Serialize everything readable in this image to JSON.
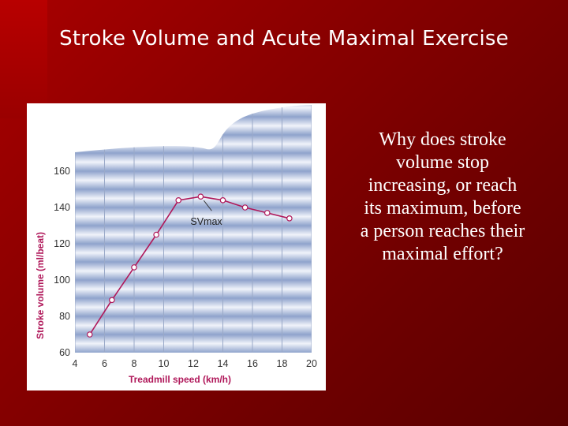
{
  "slide": {
    "title": "Stroke Volume and Acute Maximal Exercise",
    "question": "Why does stroke volume stop increasing, or reach its maximum, before a person reaches their maximal effort?"
  },
  "colors": {
    "background": "#8a0000",
    "chart_panel": "#ffffff",
    "band_dark": "#8fa3cc",
    "band_light": "#f0f3fa",
    "series": "#b0185a",
    "axis_label": "#b0185a"
  },
  "chart_data": {
    "type": "line",
    "title": "",
    "xlabel": "Treadmill speed (km/h)",
    "ylabel": "Stroke volume (ml/beat)",
    "xlim": [
      4,
      20
    ],
    "ylim": [
      60,
      170
    ],
    "x_ticks": [
      4,
      6,
      8,
      10,
      12,
      14,
      16,
      18,
      20
    ],
    "y_ticks": [
      60,
      80,
      100,
      120,
      140,
      160
    ],
    "grid": true,
    "series": [
      {
        "x": [
          5,
          6.5,
          8,
          9.5,
          11,
          12.5,
          14,
          15.5,
          17,
          18.5
        ],
        "values": [
          70,
          89,
          107,
          125,
          144,
          146,
          144,
          140,
          137,
          134
        ]
      }
    ],
    "annotations": [
      {
        "text": "SVmax",
        "x": 12.5,
        "y": 146
      }
    ]
  }
}
